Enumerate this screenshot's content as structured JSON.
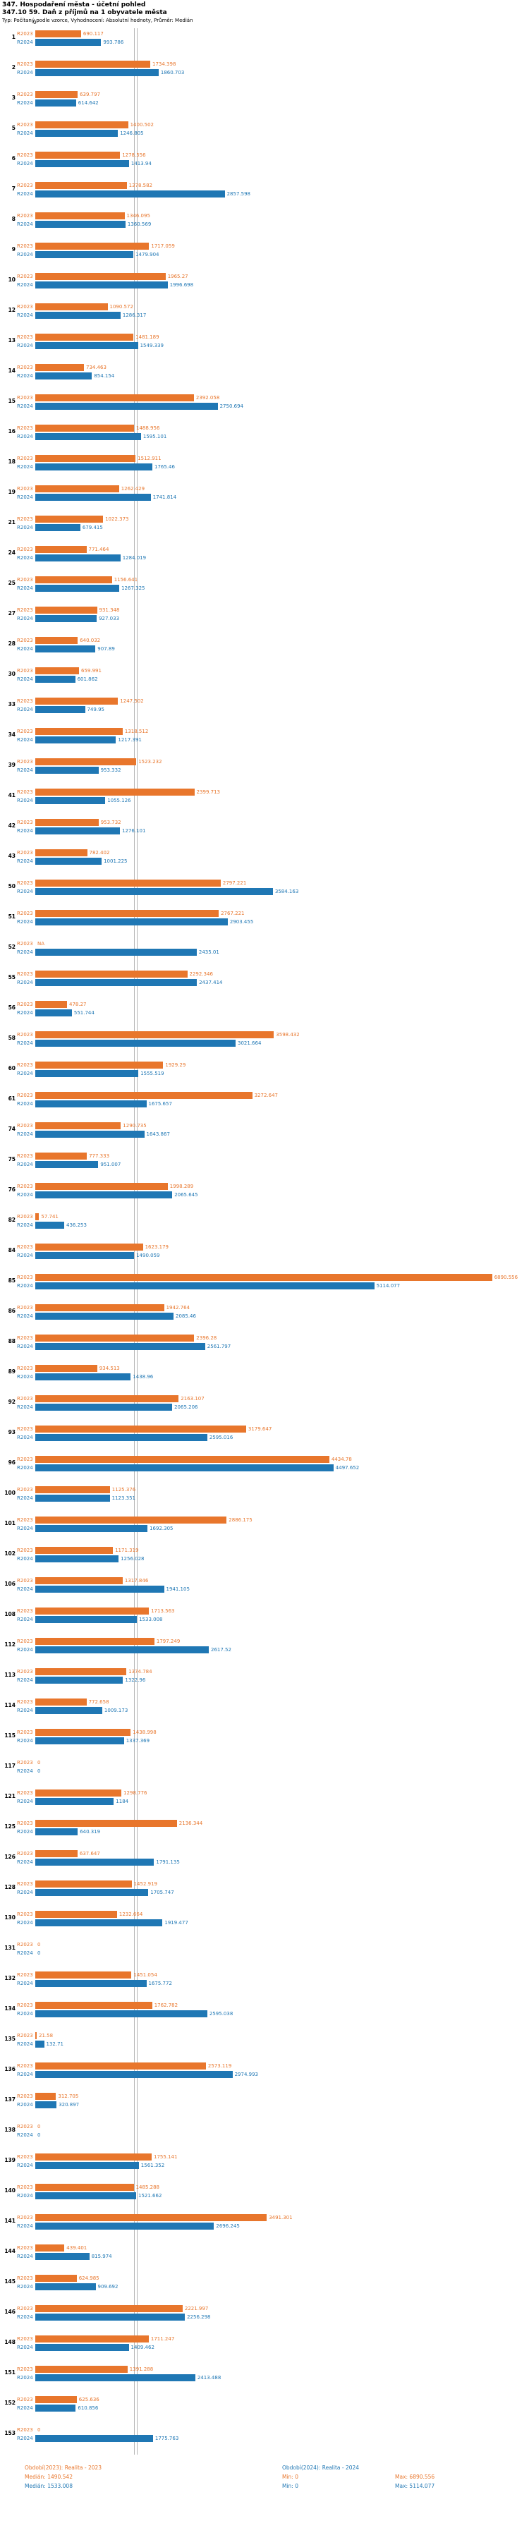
{
  "header": {
    "title": "347. Hospodaření města - účetní pohled",
    "subtitle": "347.10 59. Daň z příjmů na 1 obyvatele města",
    "meta": "Typ: Počítaný podle vzorce, Vyhodnocení: Absolutní hodnoty, Průměr: Medián"
  },
  "axis": {
    "zero": "0"
  },
  "chart_data": {
    "type": "bar",
    "orientation": "horizontal",
    "title": "347. Hospodaření města - účetní pohled",
    "subtitle": "347.10 59. Daň z příjmů na 1 obyvatele města",
    "xlim": [
      0,
      7000
    ],
    "grid": false,
    "legend_position": "bottom",
    "series": [
      {
        "name": "Období(2023): Realita - 2023",
        "bar_label": "R2023",
        "color": "#e8762c",
        "median": 1490.542,
        "min": 0,
        "max": 6890.556
      },
      {
        "name": "Období(2024): Realita - 2024",
        "bar_label": "R2024",
        "color": "#1f77b4",
        "median": 1533.008,
        "min": 0,
        "max": 5114.077
      }
    ],
    "rows": [
      {
        "n": "1",
        "v23": "690.117",
        "v24": "993.786"
      },
      {
        "n": "2",
        "v23": "1734.398",
        "v24": "1860.703"
      },
      {
        "n": "3",
        "v23": "639.797",
        "v24": "614.642"
      },
      {
        "n": "5",
        "v23": "1400.502",
        "v24": "1246.805"
      },
      {
        "n": "6",
        "v23": "1278.556",
        "v24": "1413.94"
      },
      {
        "n": "7",
        "v23": "1378.582",
        "v24": "2857.598"
      },
      {
        "n": "8",
        "v23": "1346.095",
        "v24": "1360.569"
      },
      {
        "n": "9",
        "v23": "1717.059",
        "v24": "1479.904"
      },
      {
        "n": "10",
        "v23": "1965.27",
        "v24": "1996.698"
      },
      {
        "n": "12",
        "v23": "1090.572",
        "v24": "1286.317"
      },
      {
        "n": "13",
        "v23": "1481.189",
        "v24": "1549.339"
      },
      {
        "n": "14",
        "v23": "734.463",
        "v24": "854.154"
      },
      {
        "n": "15",
        "v23": "2392.058",
        "v24": "2750.694"
      },
      {
        "n": "16",
        "v23": "1488.956",
        "v24": "1595.101"
      },
      {
        "n": "18",
        "v23": "1512.911",
        "v24": "1765.46"
      },
      {
        "n": "19",
        "v23": "1262.429",
        "v24": "1741.814"
      },
      {
        "n": "21",
        "v23": "1022.373",
        "v24": "679.415"
      },
      {
        "n": "24",
        "v23": "771.464",
        "v24": "1284.019"
      },
      {
        "n": "25",
        "v23": "1156.641",
        "v24": "1267.325"
      },
      {
        "n": "27",
        "v23": "931.348",
        "v24": "927.033"
      },
      {
        "n": "28",
        "v23": "640.032",
        "v24": "907.89"
      },
      {
        "n": "30",
        "v23": "659.991",
        "v24": "601.862"
      },
      {
        "n": "33",
        "v23": "1247.502",
        "v24": "749.95"
      },
      {
        "n": "34",
        "v23": "1318.512",
        "v24": "1217.391"
      },
      {
        "n": "39",
        "v23": "1523.232",
        "v24": "953.332"
      },
      {
        "n": "41",
        "v23": "2399.713",
        "v24": "1055.126"
      },
      {
        "n": "42",
        "v23": "953.732",
        "v24": "1276.101"
      },
      {
        "n": "43",
        "v23": "782.402",
        "v24": "1001.225"
      },
      {
        "n": "50",
        "v23": "2797.221",
        "v24": "3584.163"
      },
      {
        "n": "51",
        "v23": "2767.221",
        "v24": "2903.455"
      },
      {
        "n": "52",
        "v23": "NA",
        "v24": "2435.01"
      },
      {
        "n": "55",
        "v23": "2292.346",
        "v24": "2437.414"
      },
      {
        "n": "56",
        "v23": "478.27",
        "v24": "551.744"
      },
      {
        "n": "58",
        "v23": "3598.432",
        "v24": "3021.664"
      },
      {
        "n": "60",
        "v23": "1929.29",
        "v24": "1555.519"
      },
      {
        "n": "61",
        "v23": "3272.647",
        "v24": "1675.657"
      },
      {
        "n": "74",
        "v23": "1290.735",
        "v24": "1643.867"
      },
      {
        "n": "75",
        "v23": "777.333",
        "v24": "951.007"
      },
      {
        "n": "76",
        "v23": "1998.289",
        "v24": "2065.645"
      },
      {
        "n": "82",
        "v23": "57.741",
        "v24": "436.253"
      },
      {
        "n": "84",
        "v23": "1623.179",
        "v24": "1490.059"
      },
      {
        "n": "85",
        "v23": "6890.556",
        "v24": "5114.077"
      },
      {
        "n": "86",
        "v23": "1942.764",
        "v24": "2085.46"
      },
      {
        "n": "88",
        "v23": "2396.28",
        "v24": "2561.797"
      },
      {
        "n": "89",
        "v23": "934.513",
        "v24": "1438.96"
      },
      {
        "n": "92",
        "v23": "2163.107",
        "v24": "2065.206"
      },
      {
        "n": "93",
        "v23": "3179.647",
        "v24": "2595.016"
      },
      {
        "n": "96",
        "v23": "4434.78",
        "v24": "4497.652"
      },
      {
        "n": "100",
        "v23": "1125.376",
        "v24": "1123.351"
      },
      {
        "n": "101",
        "v23": "2886.175",
        "v24": "1692.305"
      },
      {
        "n": "102",
        "v23": "1171.319",
        "v24": "1256.028"
      },
      {
        "n": "106",
        "v23": "1317.846",
        "v24": "1941.105"
      },
      {
        "n": "108",
        "v23": "1713.563",
        "v24": "1533.008"
      },
      {
        "n": "112",
        "v23": "1797.249",
        "v24": "2617.52"
      },
      {
        "n": "113",
        "v23": "1374.784",
        "v24": "1322.96"
      },
      {
        "n": "114",
        "v23": "772.658",
        "v24": "1009.173"
      },
      {
        "n": "115",
        "v23": "1438.998",
        "v24": "1337.369"
      },
      {
        "n": "117",
        "v23": "0",
        "v24": "0"
      },
      {
        "n": "121",
        "v23": "1298.776",
        "v24": "1184"
      },
      {
        "n": "125",
        "v23": "2136.344",
        "v24": "640.319"
      },
      {
        "n": "126",
        "v23": "637.647",
        "v24": "1791.135"
      },
      {
        "n": "128",
        "v23": "1452.919",
        "v24": "1705.747"
      },
      {
        "n": "130",
        "v23": "1232.664",
        "v24": "1919.477"
      },
      {
        "n": "131",
        "v23": "0",
        "v24": "0"
      },
      {
        "n": "132",
        "v23": "1451.054",
        "v24": "1675.772"
      },
      {
        "n": "134",
        "v23": "1762.782",
        "v24": "2595.038"
      },
      {
        "n": "135",
        "v23": "21.58",
        "v24": "132.71"
      },
      {
        "n": "136",
        "v23": "2573.119",
        "v24": "2974.993"
      },
      {
        "n": "137",
        "v23": "312.705",
        "v24": "320.897"
      },
      {
        "n": "138",
        "v23": "0",
        "v24": "0"
      },
      {
        "n": "139",
        "v23": "1755.141",
        "v24": "1561.352"
      },
      {
        "n": "140",
        "v23": "1485.288",
        "v24": "1521.662"
      },
      {
        "n": "141",
        "v23": "3491.301",
        "v24": "2696.245"
      },
      {
        "n": "144",
        "v23": "439.401",
        "v24": "815.974"
      },
      {
        "n": "145",
        "v23": "624.985",
        "v24": "909.692"
      },
      {
        "n": "146",
        "v23": "2221.997",
        "v24": "2256.298"
      },
      {
        "n": "148",
        "v23": "1711.247",
        "v24": "1409.462"
      },
      {
        "n": "151",
        "v23": "1391.288",
        "v24": "2413.488"
      },
      {
        "n": "152",
        "v23": "625.636",
        "v24": "610.856"
      },
      {
        "n": "153",
        "v23": "0",
        "v24": "1775.763"
      }
    ]
  },
  "footer": {
    "legend2023": "Období(2023): Realita - 2023",
    "legend2024": "Období(2024): Realita - 2024",
    "median2023": "Medián: 1490.542",
    "min2023": "Min: 0",
    "max2023": "Max: 6890.556",
    "median2024": "Medián: 1533.008",
    "min2024": "Min: 0",
    "max2024": "Max: 5114.077"
  }
}
